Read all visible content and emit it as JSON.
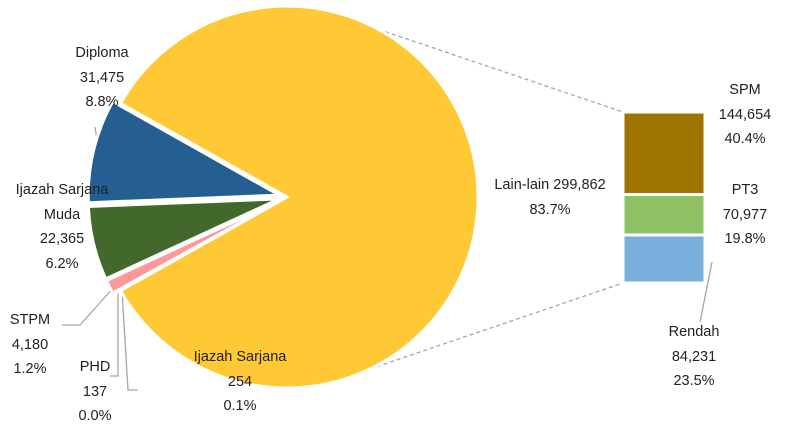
{
  "chart_data": {
    "type": "pie-of-bar",
    "pie": {
      "categories": [
        "Diploma",
        "Ijazah Sarjana Muda",
        "STPM",
        "PHD",
        "Ijazah Sarjana",
        "Lain-lain"
      ],
      "values": [
        31475,
        22365,
        4180,
        137,
        254,
        299862
      ],
      "value_labels": [
        "31,475",
        "22,365",
        "4,180",
        "137",
        "254",
        "299,862"
      ],
      "percent_labels": [
        "8.8%",
        "6.2%",
        "1.2%",
        "0.0%",
        "0.1%",
        "83.7%"
      ],
      "colors": [
        "#255e91",
        "#43682b",
        "#ff9999",
        "#a5a5a5",
        "#7f7f7f",
        "#ffc935"
      ]
    },
    "bar": {
      "categories": [
        "SPM",
        "PT3",
        "Rendah"
      ],
      "values": [
        144654,
        70977,
        84231
      ],
      "value_labels": [
        "144,654",
        "70,977",
        "84,231"
      ],
      "percent_labels": [
        "40.4%",
        "19.8%",
        "23.5%"
      ],
      "colors": [
        "#9e7400",
        "#8fc264",
        "#7aaedd"
      ]
    }
  }
}
